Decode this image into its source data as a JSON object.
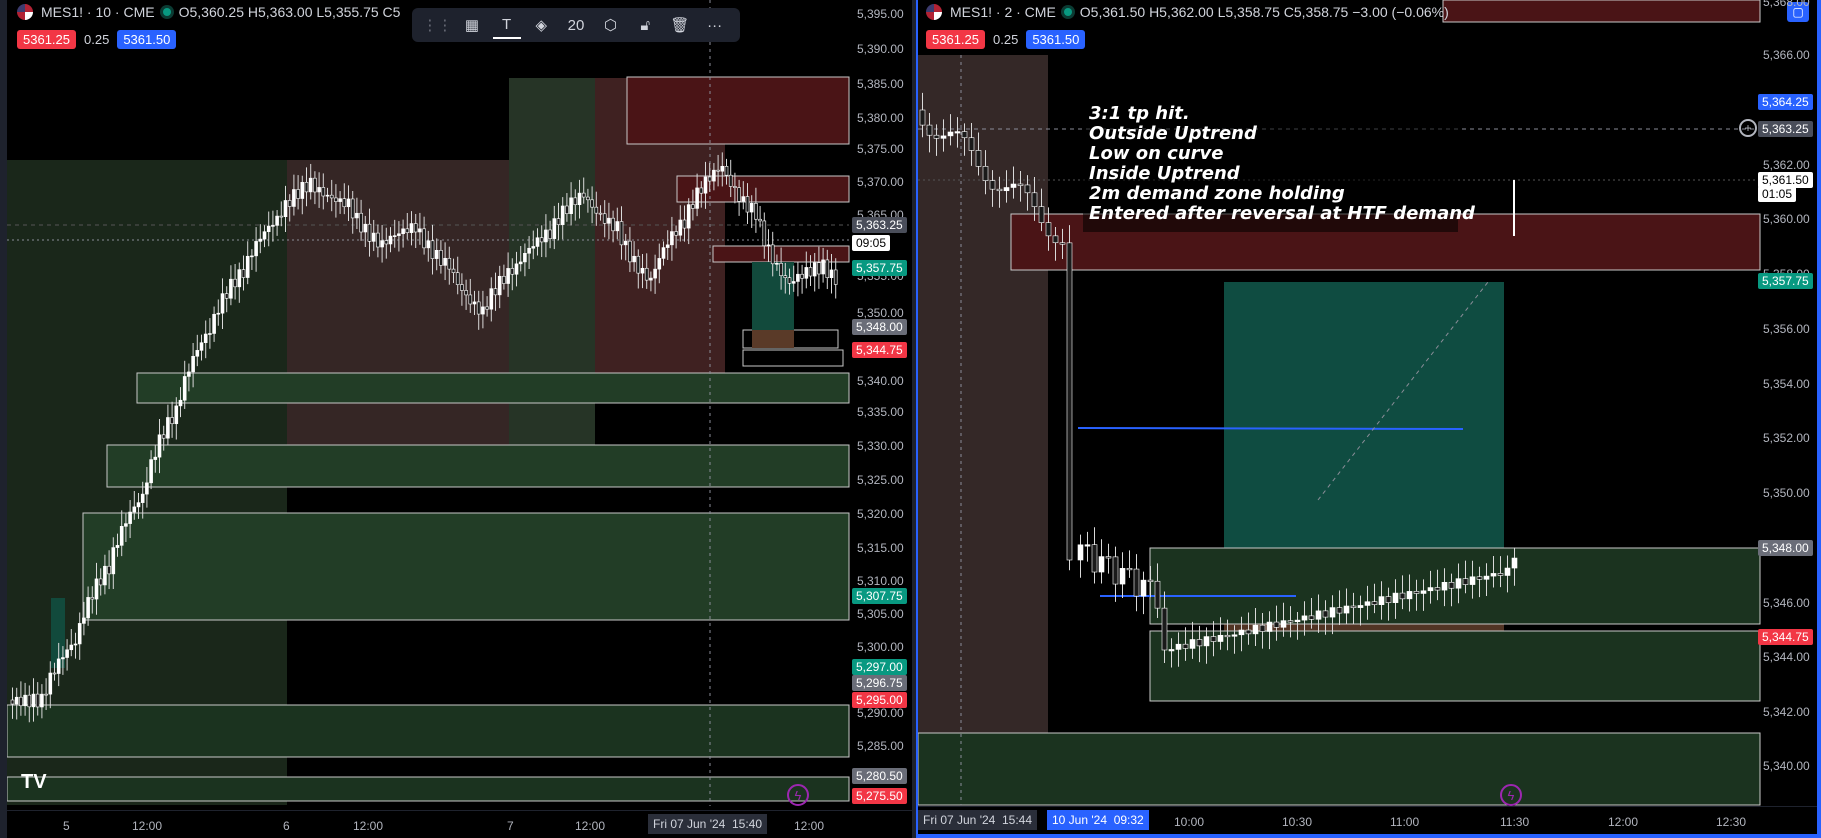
{
  "left": {
    "legend": {
      "symbol": "MES1! · 10 · CME",
      "ohlc": "O5,360.25 H5,363.00 L5,355.75 C5"
    },
    "quote": {
      "bid": "5361.25",
      "spread": "0.25",
      "ask": "5361.50"
    },
    "toolbar": {
      "width_value": "20"
    },
    "price_axis": [
      "5,395.00",
      "5,390.00",
      "5,385.00",
      "5,380.00",
      "5,375.00",
      "5,370.00",
      "5,365.00",
      "5,355.00",
      "5,350.00",
      "5,340.00",
      "5,335.00",
      "5,330.00",
      "5,325.00",
      "5,320.00",
      "5,315.00",
      "5,310.00",
      "5,305.00",
      "5,300.00",
      "5,290.00",
      "5,285.00"
    ],
    "price_tags": [
      {
        "text": "5,363.25",
        "color": "#4a4e5a"
      },
      {
        "text": "09:05",
        "color": "#ffffff"
      },
      {
        "text": "5,357.75",
        "color": "#089981"
      },
      {
        "text": "5,348.00",
        "color": "#6a6d78"
      },
      {
        "text": "5,344.75",
        "color": "#f23645"
      },
      {
        "text": "5,307.75",
        "color": "#089981"
      },
      {
        "text": "5,297.00",
        "color": "#089981"
      },
      {
        "text": "5,296.75",
        "color": "#6a6d78"
      },
      {
        "text": "5,295.00",
        "color": "#f23645"
      },
      {
        "text": "5,280.50",
        "color": "#6a6d78"
      },
      {
        "text": "5,275.50",
        "color": "#f23645"
      }
    ],
    "time_axis": [
      "5",
      "12:00",
      "6",
      "12:00",
      "7",
      "12:00",
      "12:00"
    ],
    "time_cursor": {
      "date": "Fri 07 Jun '24",
      "time": "15:40"
    },
    "logo": "TV"
  },
  "right": {
    "legend": {
      "symbol": "MES1! · 2 · CME",
      "ohlc": "O5,361.50 H5,362.00 L5,358.75 C5,358.75 −3.00 (−0.06%)"
    },
    "quote": {
      "bid": "5361.25",
      "spread": "0.25",
      "ask": "5361.50"
    },
    "price_axis": [
      "5,368.00",
      "5,366.00",
      "5,362.00",
      "5,360.00",
      "5,358.00",
      "5,356.00",
      "5,354.00",
      "5,352.00",
      "5,350.00",
      "5,346.00",
      "5,344.00",
      "5,342.00",
      "5,340.00"
    ],
    "price_tags": [
      {
        "text": "5,364.25",
        "color": "#2962ff"
      },
      {
        "text": "5,363.25",
        "color": "#4a4e5a"
      },
      {
        "text": "5,361.50",
        "color": "#ffffff"
      },
      {
        "text": "01:05",
        "color": "#ffffff"
      },
      {
        "text": "5,357.75",
        "color": "#089981"
      },
      {
        "text": "5,348.00",
        "color": "#6a6d78"
      },
      {
        "text": "5,344.75",
        "color": "#f23645"
      }
    ],
    "time_axis": [
      "10:00",
      "10:30",
      "11:00",
      "11:30",
      "12:00",
      "12:30"
    ],
    "time_cursor_start": {
      "date": "Fri 07 Jun '24",
      "time": "15:44"
    },
    "time_cursor_end": {
      "date": "10 Jun '24",
      "time": "09:32"
    },
    "annotation": [
      "3:1 tp hit.",
      "Outside Uptrend",
      "Low on curve",
      "Inside Uptrend",
      "2m demand zone holding",
      "Entered after reversal at HTF demand"
    ]
  },
  "colors": {
    "up": "#ffffff",
    "down": "#ffffff",
    "supply": "#7a1f22",
    "demand": "#1f4d2b",
    "accent": "#2962ff"
  }
}
